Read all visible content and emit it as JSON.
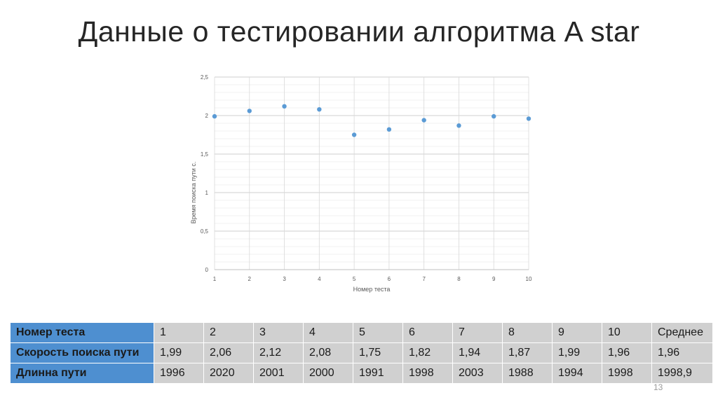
{
  "slide": {
    "title": "Данные о тестировании алгоритма A star",
    "page_number": "13"
  },
  "colors": {
    "marker": "#5b9bd5",
    "grid": "#d9d9d9",
    "table_header": "#4e8fd0",
    "table_cell": "#d0d0d0"
  },
  "chart_data": {
    "type": "scatter",
    "title": "",
    "xlabel": "Номер теста",
    "ylabel": "Время поиска пути с.",
    "x": [
      1,
      2,
      3,
      4,
      5,
      6,
      7,
      8,
      9,
      10
    ],
    "y": [
      1.99,
      2.06,
      2.12,
      2.08,
      1.75,
      1.82,
      1.94,
      1.87,
      1.99,
      1.96
    ],
    "xlim": [
      1,
      10
    ],
    "ylim": [
      0,
      2.5
    ],
    "x_ticks": [
      "1",
      "2",
      "3",
      "4",
      "5",
      "6",
      "7",
      "8",
      "9",
      "10"
    ],
    "y_ticks": [
      "0",
      "0,5",
      "1",
      "1,5",
      "2",
      "2,5"
    ],
    "grid": true,
    "legend": "none"
  },
  "table": {
    "rows": [
      {
        "label": "Номер теста",
        "cells": [
          "1",
          "2",
          "3",
          "4",
          "5",
          "6",
          "7",
          "8",
          "9",
          "10",
          "Среднее"
        ]
      },
      {
        "label": "Скорость поиска пути",
        "cells": [
          "1,99",
          "2,06",
          "2,12",
          "2,08",
          "1,75",
          "1,82",
          "1,94",
          "1,87",
          "1,99",
          "1,96",
          "1,96"
        ]
      },
      {
        "label": "Длинна пути",
        "cells": [
          "1996",
          "2020",
          "2001",
          "2000",
          "1991",
          "1998",
          "2003",
          "1988",
          "1994",
          "1998",
          "1998,9"
        ]
      }
    ]
  }
}
